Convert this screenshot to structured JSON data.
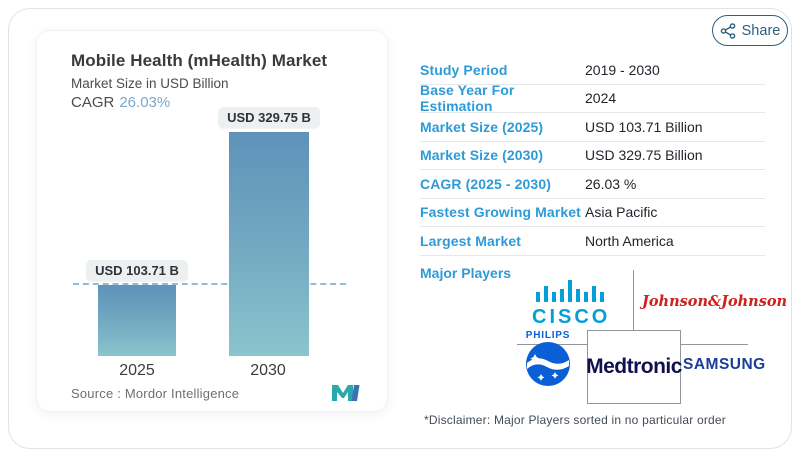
{
  "share": {
    "label": "Share"
  },
  "panel": {
    "title": "Mobile Health (mHealth) Market",
    "subtitle": "Market Size in USD Billion",
    "cagr_label": "CAGR",
    "cagr_value": "26.03%",
    "source_label": "Source :  Mordor Intelligence"
  },
  "chart_data": {
    "type": "bar",
    "title": "Mobile Health (mHealth) Market",
    "ylabel": "Market Size in USD Billion",
    "categories": [
      "2025",
      "2030"
    ],
    "values": [
      103.71,
      329.75
    ],
    "value_labels": [
      "USD 103.71 B",
      "USD 329.75 B"
    ],
    "cagr_percent": 26.03,
    "reference_line": 103.71,
    "ylim": [
      0,
      329.75
    ],
    "grid": false,
    "legend": false
  },
  "table": {
    "rows": [
      {
        "label": "Study Period",
        "value": "2019 - 2030"
      },
      {
        "label": "Base Year For Estimation",
        "value": "2024"
      },
      {
        "label": "Market Size (2025)",
        "value": "USD 103.71 Billion"
      },
      {
        "label": "Market Size (2030)",
        "value": "USD 329.75 Billion"
      },
      {
        "label": "CAGR (2025 - 2030)",
        "value": "26.03 %"
      },
      {
        "label": "Fastest Growing Market",
        "value": "Asia Pacific"
      },
      {
        "label": "Largest Market",
        "value": "North America"
      }
    ]
  },
  "major_players": {
    "label": "Major Players",
    "players": [
      {
        "name": "Cisco",
        "wordmark": "CISCO"
      },
      {
        "name": "Johnson & Johnson",
        "wordmark": "Johnson&Johnson"
      },
      {
        "name": "Philips",
        "wordmark": "PHILIPS"
      },
      {
        "name": "Medtronic",
        "wordmark": "Medtronic"
      },
      {
        "name": "Samsung",
        "wordmark": "SAMSUNG"
      }
    ]
  },
  "disclaimer": "*Disclaimer: Major Players sorted in no particular order",
  "colors": {
    "label_blue": "#2e9bd6",
    "value_dark": "#23252d",
    "cagr_blue": "#79a9cc",
    "bar_gradient_top": "#5e92b9",
    "bar_gradient_bottom": "#8ac4cd",
    "reference_dash": "#93bad6",
    "share_navy": "#2d607f",
    "cisco_blue": "#049fd9",
    "jnj_red": "#d0201a",
    "philips_blue": "#0a5fd6",
    "medtronic_navy": "#12104e",
    "samsung_blue": "#1a3e97",
    "mordor_teal": "#2aa9ac"
  }
}
